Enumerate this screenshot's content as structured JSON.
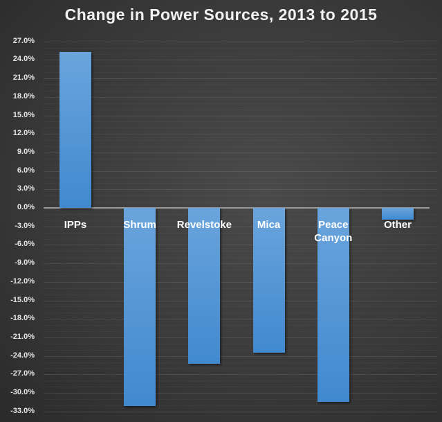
{
  "chart_data": {
    "type": "bar",
    "title": "Change in Power Sources, 2013 to 2015",
    "xlabel": "",
    "ylabel": "",
    "categories": [
      "IPPs",
      "Shrum",
      "Revelstoke",
      "Mica",
      "Peace Canyon",
      "Other"
    ],
    "values": [
      25.3,
      -32.1,
      -25.3,
      -23.5,
      -31.5,
      -1.9
    ],
    "value_format": "percent",
    "ylim": [
      -33.0,
      27.0
    ],
    "yticks": [
      "27.0%",
      "24.0%",
      "21.0%",
      "18.0%",
      "15.0%",
      "12.0%",
      "9.0%",
      "6.0%",
      "3.0%",
      "0.0%",
      "-3.0%",
      "-6.0%",
      "-9.0%",
      "-12.0%",
      "-15.0%",
      "-18.0%",
      "-21.0%",
      "-24.0%",
      "-27.0%",
      "-30.0%",
      "-33.0%"
    ],
    "grid": true,
    "legend": "none",
    "colors": {
      "bar": "#5b9bd5",
      "background": "#3a3a3a",
      "text": "#ffffff"
    }
  }
}
